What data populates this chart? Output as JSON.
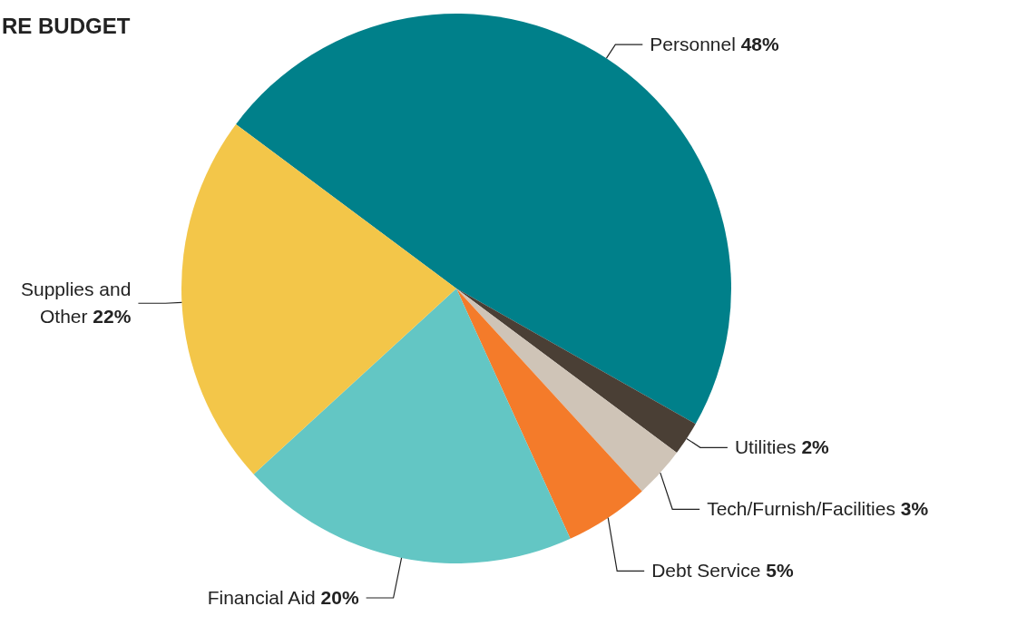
{
  "chart_data": {
    "type": "pie",
    "title": "RE BUDGET",
    "categories": [
      "Personnel",
      "Utilities",
      "Tech/Furnish/Facilities",
      "Debt Service",
      "Financial Aid",
      "Supplies and Other"
    ],
    "values": [
      48,
      2,
      3,
      5,
      20,
      22
    ],
    "value_labels": [
      "48%",
      "2%",
      "3%",
      "5%",
      "20%",
      "22%"
    ],
    "colors": [
      "#00808a",
      "#4a3f35",
      "#cfc4b7",
      "#f47b2a",
      "#63c6c4",
      "#f3c649"
    ]
  }
}
